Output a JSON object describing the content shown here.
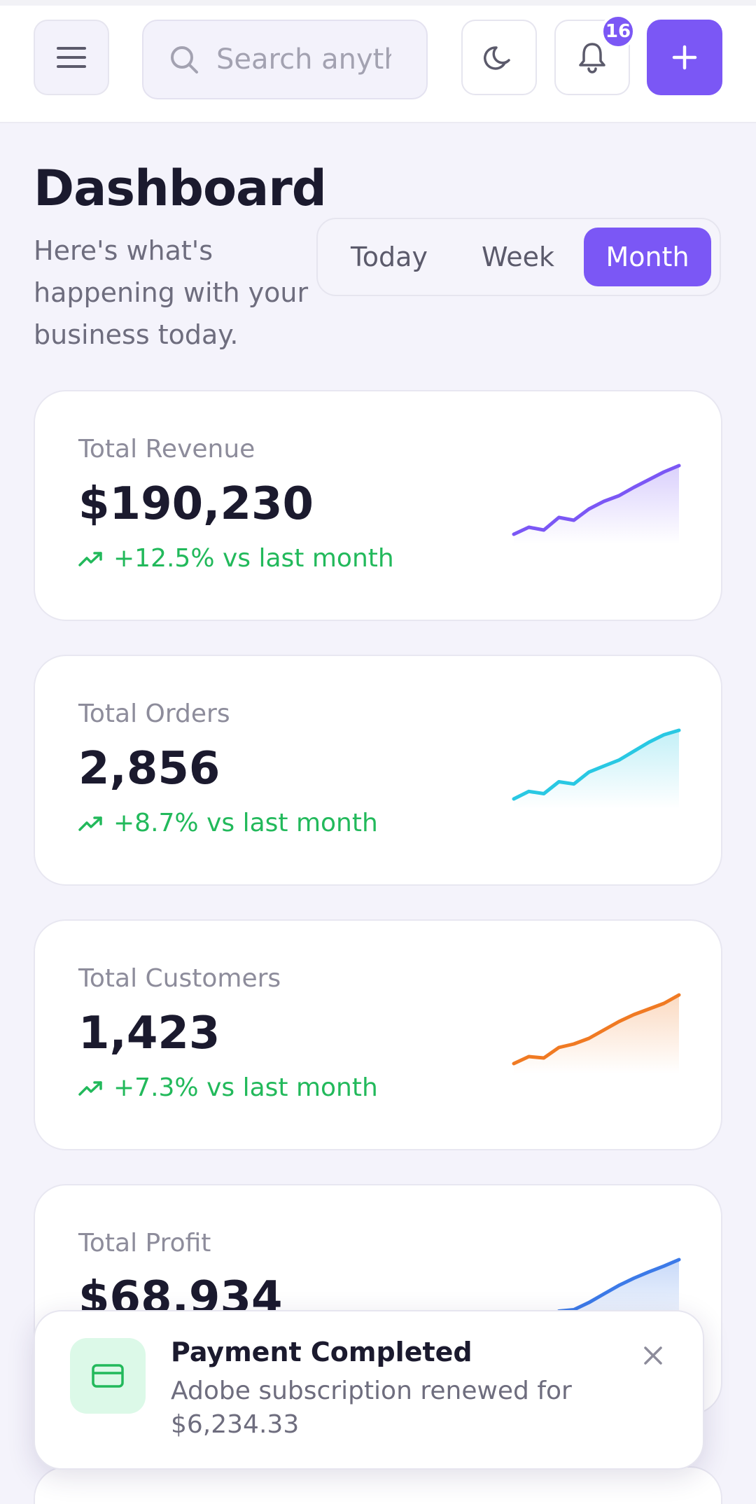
{
  "header": {
    "search_placeholder": "Search anything...",
    "notification_count": "16"
  },
  "page": {
    "title": "Dashboard",
    "subtitle": "Here's what's happening with your business today."
  },
  "period_tabs": [
    {
      "label": "Today",
      "selected": false
    },
    {
      "label": "Week",
      "selected": false
    },
    {
      "label": "Month",
      "selected": true
    }
  ],
  "stats": [
    {
      "label": "Total Revenue",
      "value": "$190,230",
      "trend": "+12.5% vs last month",
      "color": "#7b57f5",
      "spark": [
        0,
        1,
        0.6,
        2.4,
        2,
        3.6,
        4.7,
        5.5,
        6.7,
        7.8,
        8.9,
        9.8
      ]
    },
    {
      "label": "Total Orders",
      "value": "2,856",
      "trend": "+8.7% vs last month",
      "color": "#29c8e3",
      "spark": [
        0,
        1,
        0.7,
        2.3,
        2,
        3.6,
        4.4,
        5.2,
        6.4,
        7.6,
        8.6,
        9.2
      ]
    },
    {
      "label": "Total Customers",
      "value": "1,423",
      "trend": "+7.3% vs last month",
      "color": "#f07a23",
      "spark": [
        0,
        1,
        0.8,
        2.3,
        2.8,
        3.6,
        4.8,
        6,
        7,
        7.8,
        8.6,
        9.8
      ]
    },
    {
      "label": "Total Profit",
      "value": "$68,934",
      "trend": "",
      "color": "#3c7ae8",
      "spark": [
        0,
        1,
        0.8,
        2.4,
        2.6,
        3.6,
        4.8,
        6,
        7,
        7.9,
        8.7,
        9.6
      ]
    }
  ],
  "toast": {
    "title": "Payment Completed",
    "message": "Adobe subscription renewed for $6,234.33"
  },
  "colors": {
    "accent": "#7b57f5",
    "positive": "#22b95b"
  }
}
